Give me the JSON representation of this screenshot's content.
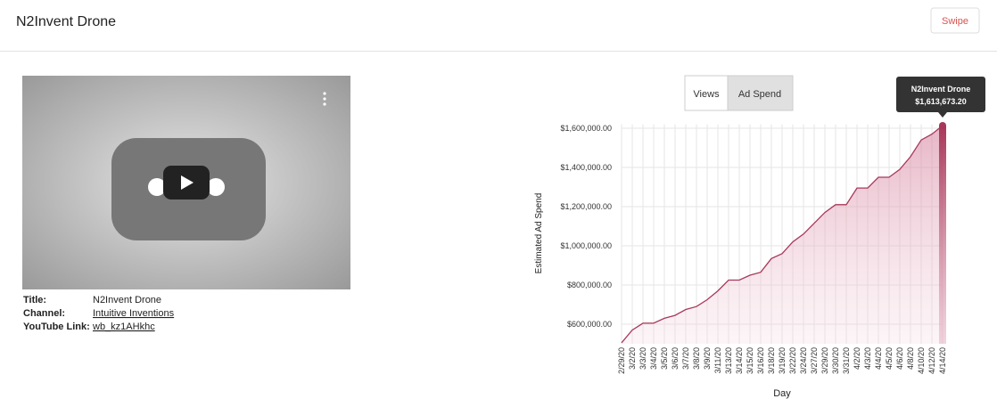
{
  "header": {
    "title": "N2Invent Drone",
    "button": "Swipe"
  },
  "video_info": [
    {
      "label": "Title:",
      "value": "N2Invent Drone"
    },
    {
      "label": "Channel:",
      "value": "Intuitive Inventions"
    },
    {
      "label": "YouTube Link:",
      "value": "wb_kz1AHkhc"
    }
  ],
  "chart_toggle": [
    "Views",
    "Ad Spend"
  ],
  "chart_data": {
    "type": "area",
    "x_label": "Day",
    "y_label": "Estimated Ad Spend",
    "categories": [
      "2/29/20",
      "3/2/20",
      "3/3/20",
      "3/4/20",
      "3/5/20",
      "3/6/20",
      "3/7/20",
      "3/8/20",
      "3/9/20",
      "3/11/20",
      "3/13/20",
      "3/14/20",
      "3/15/20",
      "3/16/20",
      "3/18/20",
      "3/19/20",
      "3/22/20",
      "3/24/20",
      "3/27/20",
      "3/29/20",
      "3/30/20",
      "3/31/20",
      "4/2/20",
      "4/3/20",
      "4/4/20",
      "4/5/20",
      "4/6/20",
      "4/8/20",
      "4/10/20",
      "4/12/20",
      "4/14/20"
    ],
    "series": [
      {
        "name": "N2Invent Drone",
        "color": "#a8385a",
        "values": [
          505000,
          570000,
          605000,
          605000,
          630000,
          645000,
          675000,
          690000,
          725000,
          770000,
          825000,
          825000,
          850000,
          865000,
          935000,
          960000,
          1020000,
          1060000,
          1115000,
          1170000,
          1210000,
          1210000,
          1295000,
          1295000,
          1350000,
          1350000,
          1390000,
          1455000,
          1540000,
          1570000,
          1613673.2
        ],
        "value_labels": [
          null,
          null,
          null,
          null,
          null,
          null,
          null,
          null,
          null,
          null,
          null,
          null,
          null,
          null,
          null,
          null,
          null,
          null,
          null,
          null,
          null,
          null,
          null,
          null,
          null,
          null,
          null,
          null,
          null,
          null,
          "$1,613,673.20"
        ]
      }
    ],
    "ylim": [
      500000,
      1620000
    ],
    "yticks": [
      {
        "value": 600000,
        "label": "$600,000.00"
      },
      {
        "value": 800000,
        "label": "$800,000.00"
      },
      {
        "value": 1000000,
        "label": "$1,000,000.00"
      },
      {
        "value": 1200000,
        "label": "$1,200,000.00"
      },
      {
        "value": 1400000,
        "label": "$1,400,000.00"
      },
      {
        "value": 1600000,
        "label": "$1,600,000.00"
      }
    ],
    "grid": true
  }
}
